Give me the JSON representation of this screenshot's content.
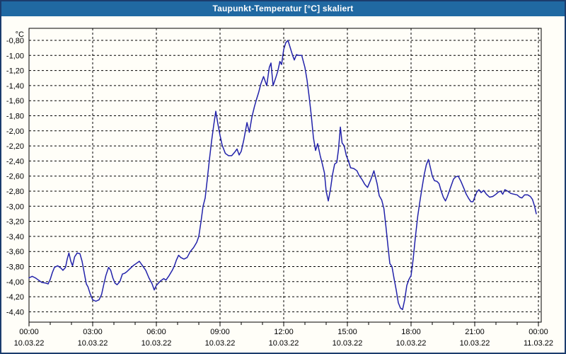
{
  "title": "Taupunkt-Temperatur [°C] skaliert",
  "colors": {
    "titlebar_bg": "#2069a2",
    "titlebar_text": "#ffffff",
    "window_border": "#1b3c6d",
    "background": "#fffef8",
    "grid": "#000000",
    "line": "#2222aa"
  },
  "chart_data": {
    "type": "line",
    "title": "Taupunkt-Temperatur [°C] skaliert",
    "y_unit_label": "°C",
    "grid": "dashed",
    "legend": "none",
    "x_axis": {
      "range_hours": [
        0,
        24.13
      ],
      "minor_tick_hours": 1,
      "major_ticks": [
        {
          "hours": 0,
          "time": "00:00",
          "date": "10.03.22"
        },
        {
          "hours": 3,
          "time": "03:00",
          "date": "10.03.22"
        },
        {
          "hours": 6,
          "time": "06:00",
          "date": "10.03.22"
        },
        {
          "hours": 9,
          "time": "09:00",
          "date": "10.03.22"
        },
        {
          "hours": 12,
          "time": "12:00",
          "date": "10.03.22"
        },
        {
          "hours": 15,
          "time": "15:00",
          "date": "10.03.22"
        },
        {
          "hours": 18,
          "time": "18:00",
          "date": "10.03.22"
        },
        {
          "hours": 21,
          "time": "21:00",
          "date": "10.03.22"
        },
        {
          "hours": 24,
          "time": "00:00",
          "date": "11.03.22"
        }
      ]
    },
    "y_axis": {
      "range": [
        -4.54,
        -0.64
      ],
      "ticks": [
        {
          "value": -0.8,
          "label": "-0,80"
        },
        {
          "value": -1.0,
          "label": "-1,00"
        },
        {
          "value": -1.2,
          "label": "-1,20"
        },
        {
          "value": -1.4,
          "label": "-1,40"
        },
        {
          "value": -1.6,
          "label": "-1,60"
        },
        {
          "value": -1.8,
          "label": "-1,80"
        },
        {
          "value": -2.0,
          "label": "-2,00"
        },
        {
          "value": -2.2,
          "label": "-2,20"
        },
        {
          "value": -2.4,
          "label": "-2,40"
        },
        {
          "value": -2.6,
          "label": "-2,60"
        },
        {
          "value": -2.8,
          "label": "-2,80"
        },
        {
          "value": -3.0,
          "label": "-3,00"
        },
        {
          "value": -3.2,
          "label": "-3,20"
        },
        {
          "value": -3.4,
          "label": "-3,40"
        },
        {
          "value": -3.6,
          "label": "-3,60"
        },
        {
          "value": -3.8,
          "label": "-3,80"
        },
        {
          "value": -4.0,
          "label": "-4,00"
        },
        {
          "value": -4.2,
          "label": "-4,20"
        },
        {
          "value": -4.4,
          "label": "-4,40"
        }
      ]
    },
    "series": [
      {
        "name": "Taupunkt-Temperatur",
        "color": "#2222aa",
        "points": [
          [
            0.0,
            -3.95
          ],
          [
            0.15,
            -3.93
          ],
          [
            0.3,
            -3.95
          ],
          [
            0.45,
            -3.98
          ],
          [
            0.6,
            -4.01
          ],
          [
            0.8,
            -4.02
          ],
          [
            0.9,
            -4.03
          ],
          [
            1.0,
            -3.97
          ],
          [
            1.1,
            -3.88
          ],
          [
            1.2,
            -3.81
          ],
          [
            1.35,
            -3.79
          ],
          [
            1.5,
            -3.82
          ],
          [
            1.6,
            -3.85
          ],
          [
            1.72,
            -3.81
          ],
          [
            1.8,
            -3.7
          ],
          [
            1.88,
            -3.62
          ],
          [
            1.97,
            -3.73
          ],
          [
            2.05,
            -3.79
          ],
          [
            2.15,
            -3.67
          ],
          [
            2.27,
            -3.62
          ],
          [
            2.4,
            -3.63
          ],
          [
            2.5,
            -3.73
          ],
          [
            2.6,
            -3.88
          ],
          [
            2.7,
            -4.03
          ],
          [
            2.78,
            -4.07
          ],
          [
            2.88,
            -4.16
          ],
          [
            3.0,
            -4.24
          ],
          [
            3.15,
            -4.26
          ],
          [
            3.3,
            -4.24
          ],
          [
            3.42,
            -4.17
          ],
          [
            3.52,
            -4.04
          ],
          [
            3.62,
            -3.92
          ],
          [
            3.75,
            -3.81
          ],
          [
            3.85,
            -3.85
          ],
          [
            3.95,
            -3.95
          ],
          [
            4.05,
            -4.02
          ],
          [
            4.15,
            -4.04
          ],
          [
            4.28,
            -4.0
          ],
          [
            4.4,
            -3.9
          ],
          [
            4.5,
            -3.89
          ],
          [
            4.6,
            -3.87
          ],
          [
            4.75,
            -3.83
          ],
          [
            4.9,
            -3.79
          ],
          [
            5.05,
            -3.76
          ],
          [
            5.2,
            -3.73
          ],
          [
            5.35,
            -3.79
          ],
          [
            5.5,
            -3.85
          ],
          [
            5.65,
            -3.95
          ],
          [
            5.8,
            -4.03
          ],
          [
            5.9,
            -4.11
          ],
          [
            6.0,
            -4.05
          ],
          [
            6.1,
            -4.02
          ],
          [
            6.2,
            -3.99
          ],
          [
            6.35,
            -3.96
          ],
          [
            6.45,
            -3.98
          ],
          [
            6.6,
            -3.92
          ],
          [
            6.75,
            -3.85
          ],
          [
            6.85,
            -3.79
          ],
          [
            6.95,
            -3.71
          ],
          [
            7.05,
            -3.65
          ],
          [
            7.15,
            -3.68
          ],
          [
            7.3,
            -3.7
          ],
          [
            7.45,
            -3.68
          ],
          [
            7.6,
            -3.6
          ],
          [
            7.75,
            -3.55
          ],
          [
            7.9,
            -3.48
          ],
          [
            8.0,
            -3.4
          ],
          [
            8.1,
            -3.21
          ],
          [
            8.2,
            -3.0
          ],
          [
            8.3,
            -2.89
          ],
          [
            8.4,
            -2.64
          ],
          [
            8.5,
            -2.38
          ],
          [
            8.6,
            -2.14
          ],
          [
            8.7,
            -1.93
          ],
          [
            8.8,
            -1.74
          ],
          [
            8.9,
            -1.91
          ],
          [
            9.0,
            -2.06
          ],
          [
            9.1,
            -2.19
          ],
          [
            9.25,
            -2.3
          ],
          [
            9.4,
            -2.33
          ],
          [
            9.55,
            -2.33
          ],
          [
            9.7,
            -2.28
          ],
          [
            9.8,
            -2.24
          ],
          [
            9.9,
            -2.32
          ],
          [
            10.0,
            -2.27
          ],
          [
            10.12,
            -2.12
          ],
          [
            10.27,
            -1.89
          ],
          [
            10.38,
            -2.02
          ],
          [
            10.5,
            -1.82
          ],
          [
            10.62,
            -1.68
          ],
          [
            10.72,
            -1.58
          ],
          [
            10.82,
            -1.49
          ],
          [
            10.92,
            -1.38
          ],
          [
            11.05,
            -1.28
          ],
          [
            11.2,
            -1.4
          ],
          [
            11.32,
            -1.16
          ],
          [
            11.4,
            -1.1
          ],
          [
            11.5,
            -1.4
          ],
          [
            11.62,
            -1.3
          ],
          [
            11.72,
            -1.21
          ],
          [
            11.82,
            -1.08
          ],
          [
            11.9,
            -1.12
          ],
          [
            12.0,
            -0.92
          ],
          [
            12.1,
            -0.83
          ],
          [
            12.2,
            -0.8
          ],
          [
            12.3,
            -0.89
          ],
          [
            12.42,
            -1.0
          ],
          [
            12.5,
            -1.06
          ],
          [
            12.6,
            -0.99
          ],
          [
            12.72,
            -1.0
          ],
          [
            12.85,
            -1.0
          ],
          [
            13.0,
            -1.16
          ],
          [
            13.1,
            -1.33
          ],
          [
            13.2,
            -1.55
          ],
          [
            13.3,
            -1.8
          ],
          [
            13.4,
            -2.09
          ],
          [
            13.5,
            -2.26
          ],
          [
            13.6,
            -2.17
          ],
          [
            13.72,
            -2.33
          ],
          [
            13.82,
            -2.44
          ],
          [
            13.92,
            -2.56
          ],
          [
            14.0,
            -2.8
          ],
          [
            14.1,
            -2.93
          ],
          [
            14.2,
            -2.78
          ],
          [
            14.3,
            -2.58
          ],
          [
            14.4,
            -2.44
          ],
          [
            14.5,
            -2.42
          ],
          [
            14.58,
            -2.25
          ],
          [
            14.67,
            -1.95
          ],
          [
            14.75,
            -2.16
          ],
          [
            14.85,
            -2.2
          ],
          [
            14.95,
            -2.33
          ],
          [
            15.05,
            -2.4
          ],
          [
            15.15,
            -2.49
          ],
          [
            15.3,
            -2.5
          ],
          [
            15.45,
            -2.53
          ],
          [
            15.55,
            -2.59
          ],
          [
            15.7,
            -2.65
          ],
          [
            15.82,
            -2.71
          ],
          [
            15.95,
            -2.75
          ],
          [
            16.1,
            -2.65
          ],
          [
            16.25,
            -2.53
          ],
          [
            16.4,
            -2.7
          ],
          [
            16.5,
            -2.86
          ],
          [
            16.62,
            -2.92
          ],
          [
            16.72,
            -3.03
          ],
          [
            16.82,
            -3.28
          ],
          [
            16.92,
            -3.55
          ],
          [
            17.0,
            -3.76
          ],
          [
            17.1,
            -3.8
          ],
          [
            17.2,
            -3.96
          ],
          [
            17.3,
            -4.11
          ],
          [
            17.4,
            -4.28
          ],
          [
            17.5,
            -4.35
          ],
          [
            17.6,
            -4.37
          ],
          [
            17.7,
            -4.24
          ],
          [
            17.8,
            -4.05
          ],
          [
            17.9,
            -3.97
          ],
          [
            18.0,
            -3.92
          ],
          [
            18.1,
            -3.7
          ],
          [
            18.2,
            -3.42
          ],
          [
            18.32,
            -3.12
          ],
          [
            18.42,
            -2.93
          ],
          [
            18.52,
            -2.75
          ],
          [
            18.62,
            -2.58
          ],
          [
            18.72,
            -2.45
          ],
          [
            18.82,
            -2.38
          ],
          [
            18.92,
            -2.5
          ],
          [
            19.0,
            -2.6
          ],
          [
            19.1,
            -2.66
          ],
          [
            19.22,
            -2.67
          ],
          [
            19.32,
            -2.7
          ],
          [
            19.42,
            -2.8
          ],
          [
            19.52,
            -2.88
          ],
          [
            19.62,
            -2.93
          ],
          [
            19.7,
            -2.88
          ],
          [
            19.8,
            -2.8
          ],
          [
            19.9,
            -2.72
          ],
          [
            20.0,
            -2.64
          ],
          [
            20.1,
            -2.61
          ],
          [
            20.22,
            -2.6
          ],
          [
            20.35,
            -2.67
          ],
          [
            20.5,
            -2.77
          ],
          [
            20.6,
            -2.84
          ],
          [
            20.72,
            -2.9
          ],
          [
            20.82,
            -2.94
          ],
          [
            20.92,
            -2.94
          ],
          [
            21.0,
            -2.88
          ],
          [
            21.1,
            -2.81
          ],
          [
            21.2,
            -2.78
          ],
          [
            21.3,
            -2.82
          ],
          [
            21.42,
            -2.79
          ],
          [
            21.55,
            -2.84
          ],
          [
            21.7,
            -2.88
          ],
          [
            21.85,
            -2.87
          ],
          [
            22.0,
            -2.84
          ],
          [
            22.12,
            -2.81
          ],
          [
            22.22,
            -2.8
          ],
          [
            22.32,
            -2.84
          ],
          [
            22.42,
            -2.78
          ],
          [
            22.55,
            -2.8
          ],
          [
            22.7,
            -2.83
          ],
          [
            22.85,
            -2.84
          ],
          [
            23.0,
            -2.85
          ],
          [
            23.12,
            -2.88
          ],
          [
            23.22,
            -2.89
          ],
          [
            23.35,
            -2.85
          ],
          [
            23.5,
            -2.85
          ],
          [
            23.62,
            -2.87
          ],
          [
            23.72,
            -2.91
          ],
          [
            23.82,
            -3.0
          ],
          [
            23.9,
            -3.1
          ]
        ]
      }
    ]
  }
}
